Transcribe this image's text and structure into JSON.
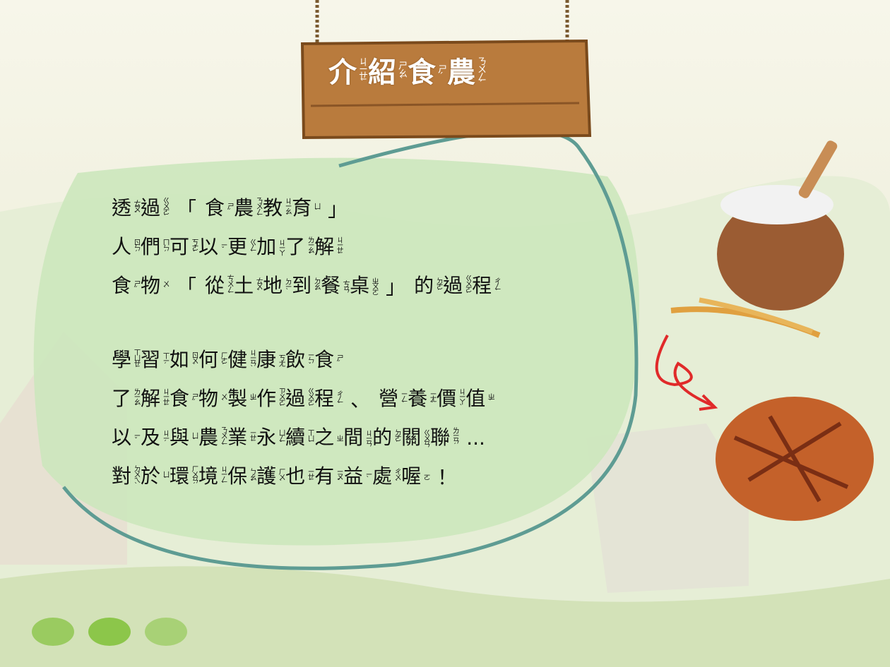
{
  "title": [
    [
      "介",
      "ㄐㄧㄝˋ"
    ],
    [
      "紹",
      "ㄕㄠˋ"
    ],
    [
      "食",
      "ㄕˊ"
    ],
    [
      "農",
      "ㄋㄨㄥˊ"
    ]
  ],
  "paragraphs": [
    [
      [
        [
          "透",
          "ㄊㄡˋ"
        ],
        [
          "過",
          "ㄍㄨㄛˋ"
        ],
        [
          "「"
        ],
        [
          "食",
          "ㄕˊ"
        ],
        [
          "農",
          "ㄋㄨㄥˊ"
        ],
        [
          "教",
          "ㄐㄧㄠˋ"
        ],
        [
          "育",
          "ㄩˋ"
        ],
        [
          "」"
        ]
      ],
      [
        [
          "人",
          "ㄖㄣˊ"
        ],
        [
          "們",
          "ㄇㄣˊ"
        ],
        [
          "可",
          "ㄎㄜˇ"
        ],
        [
          "以",
          "ㄧˇ"
        ],
        [
          "更",
          "ㄍㄥˋ"
        ],
        [
          "加",
          "ㄐㄧㄚ"
        ],
        [
          "了",
          "ㄌㄧㄠˇ"
        ],
        [
          "解",
          "ㄐㄧㄝˇ"
        ]
      ],
      [
        [
          "食",
          "ㄕˊ"
        ],
        [
          "物",
          "ㄨˋ"
        ],
        [
          "「"
        ],
        [
          "從",
          "ㄘㄨㄥˊ"
        ],
        [
          "土",
          "ㄊㄨˇ"
        ],
        [
          "地",
          "ㄉㄧˋ"
        ],
        [
          "到",
          "ㄉㄠˋ"
        ],
        [
          "餐",
          "ㄘㄢ"
        ],
        [
          "桌",
          "ㄓㄨㄛ"
        ],
        [
          "」"
        ],
        [
          "的",
          "ㄉㄜ˙"
        ],
        [
          "過",
          "ㄍㄨㄛˋ"
        ],
        [
          "程",
          "ㄔㄥˊ"
        ]
      ]
    ],
    [
      [
        [
          "學",
          "ㄒㄩㄝˊ"
        ],
        [
          "習",
          "ㄒㄧˊ"
        ],
        [
          "如",
          "ㄖㄨˊ"
        ],
        [
          "何",
          "ㄏㄜˊ"
        ],
        [
          "健",
          "ㄐㄧㄢˋ"
        ],
        [
          "康",
          "ㄎㄤ"
        ],
        [
          "飲",
          "ㄧㄣˇ"
        ],
        [
          "食",
          "ㄕˊ"
        ]
      ],
      [
        [
          "了",
          "ㄌㄧㄠˇ"
        ],
        [
          "解",
          "ㄐㄧㄝˇ"
        ],
        [
          "食",
          "ㄕˊ"
        ],
        [
          "物",
          "ㄨˋ"
        ],
        [
          "製",
          "ㄓˋ"
        ],
        [
          "作",
          "ㄗㄨㄛˋ"
        ],
        [
          "過",
          "ㄍㄨㄛˋ"
        ],
        [
          "程",
          "ㄔㄥˊ"
        ],
        [
          "、"
        ],
        [
          "營",
          "ㄧㄥˊ"
        ],
        [
          "養",
          "ㄧㄤˇ"
        ],
        [
          "價",
          "ㄐㄧㄚˋ"
        ],
        [
          "值",
          "ㄓˊ"
        ]
      ],
      [
        [
          "以",
          "ㄧˇ"
        ],
        [
          "及",
          "ㄐㄧˊ"
        ],
        [
          "與",
          "ㄩˇ"
        ],
        [
          "農",
          "ㄋㄨㄥˊ"
        ],
        [
          "業",
          "ㄧㄝˋ"
        ],
        [
          "永",
          "ㄩㄥˇ"
        ],
        [
          "續",
          "ㄒㄩˋ"
        ],
        [
          "之",
          "ㄓ"
        ],
        [
          "間",
          "ㄐㄧㄢ"
        ],
        [
          "的",
          "ㄉㄜ˙"
        ],
        [
          "關",
          "ㄍㄨㄢ"
        ],
        [
          "聯",
          "ㄌㄧㄢˊ"
        ],
        [
          "..."
        ]
      ],
      [
        [
          "對",
          "ㄉㄨㄟˋ"
        ],
        [
          "於",
          "ㄩˊ"
        ],
        [
          "環",
          "ㄏㄨㄢˊ"
        ],
        [
          "境",
          "ㄐㄧㄥˋ"
        ],
        [
          "保",
          "ㄅㄠˇ"
        ],
        [
          "護",
          "ㄏㄨˋ"
        ],
        [
          "也",
          "ㄧㄝˇ"
        ],
        [
          "有",
          "ㄧㄡˇ"
        ],
        [
          "益",
          "ㄧˋ"
        ],
        [
          "處",
          "ㄔㄨˋ"
        ],
        [
          "喔",
          "ㄛ"
        ],
        [
          "！"
        ]
      ]
    ]
  ]
}
